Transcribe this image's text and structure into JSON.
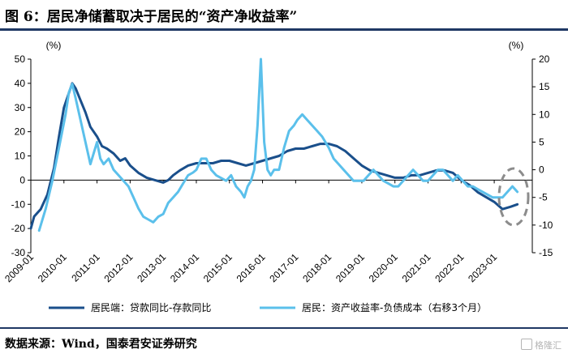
{
  "title": "图 6：居民净储蓄取决于居民的“资产净收益率”",
  "source": "数据来源：Wind，国泰君安证券研究",
  "watermark": "格隆汇",
  "colors": {
    "series1": "#1a4f8b",
    "series2": "#5bc0eb",
    "rule": "#1f3864",
    "highlight": "#8c8c8c"
  },
  "chart_data": {
    "type": "line",
    "left_axis": {
      "unit": "(%)",
      "min": -30,
      "max": 50,
      "ticks": [
        50,
        40,
        30,
        20,
        10,
        0,
        -10,
        -20,
        -30
      ]
    },
    "right_axis": {
      "unit": "(%)",
      "min": -15,
      "max": 20,
      "ticks": [
        20,
        15,
        10,
        5,
        0,
        -5,
        -10,
        -15
      ]
    },
    "x_ticks": [
      "2009-01",
      "2010-01",
      "2011-01",
      "2012-01",
      "2013-01",
      "2014-01",
      "2015-01",
      "2016-01",
      "2017-01",
      "2018-01",
      "2019-01",
      "2020-01",
      "2021-01",
      "2022-01",
      "2023-01"
    ],
    "legend": [
      "居民端：贷款同比-存款同比",
      "居民：资产收益率-负债成本（右移3个月）"
    ],
    "series": [
      {
        "name": "居民端：贷款同比-存款同比",
        "axis": "left",
        "points": [
          [
            2009.0,
            -20
          ],
          [
            2009.1,
            -15
          ],
          [
            2009.3,
            -12
          ],
          [
            2009.5,
            -6
          ],
          [
            2009.7,
            5
          ],
          [
            2009.85,
            18
          ],
          [
            2010.0,
            30
          ],
          [
            2010.15,
            36
          ],
          [
            2010.25,
            40
          ],
          [
            2010.35,
            38
          ],
          [
            2010.5,
            33
          ],
          [
            2010.65,
            28
          ],
          [
            2010.8,
            22
          ],
          [
            2011.0,
            18
          ],
          [
            2011.15,
            14
          ],
          [
            2011.3,
            13
          ],
          [
            2011.5,
            11
          ],
          [
            2011.7,
            8
          ],
          [
            2011.85,
            9
          ],
          [
            2012.0,
            6
          ],
          [
            2012.25,
            3
          ],
          [
            2012.5,
            1
          ],
          [
            2012.75,
            0
          ],
          [
            2013.0,
            -1
          ],
          [
            2013.15,
            0
          ],
          [
            2013.3,
            2
          ],
          [
            2013.5,
            4
          ],
          [
            2013.75,
            6
          ],
          [
            2014.0,
            7
          ],
          [
            2014.25,
            7
          ],
          [
            2014.5,
            7
          ],
          [
            2014.75,
            8
          ],
          [
            2015.0,
            8
          ],
          [
            2015.25,
            7
          ],
          [
            2015.5,
            6
          ],
          [
            2015.75,
            7
          ],
          [
            2016.0,
            8
          ],
          [
            2016.25,
            9
          ],
          [
            2016.5,
            10
          ],
          [
            2016.75,
            12
          ],
          [
            2017.0,
            13
          ],
          [
            2017.25,
            13
          ],
          [
            2017.5,
            14
          ],
          [
            2017.75,
            15
          ],
          [
            2018.0,
            15
          ],
          [
            2018.25,
            14
          ],
          [
            2018.5,
            12
          ],
          [
            2018.75,
            9
          ],
          [
            2019.0,
            6
          ],
          [
            2019.25,
            4
          ],
          [
            2019.5,
            3
          ],
          [
            2019.75,
            2
          ],
          [
            2020.0,
            1
          ],
          [
            2020.25,
            1
          ],
          [
            2020.5,
            2
          ],
          [
            2020.75,
            2
          ],
          [
            2021.0,
            3
          ],
          [
            2021.25,
            4
          ],
          [
            2021.5,
            4
          ],
          [
            2021.75,
            3
          ],
          [
            2022.0,
            0
          ],
          [
            2022.25,
            -2
          ],
          [
            2022.5,
            -5
          ],
          [
            2022.75,
            -7
          ],
          [
            2023.0,
            -9
          ],
          [
            2023.25,
            -12
          ],
          [
            2023.5,
            -11
          ],
          [
            2023.7,
            -10
          ]
        ]
      },
      {
        "name": "居民：资产收益率-负债成本（右移3个月）",
        "axis": "right",
        "points": [
          [
            2009.25,
            -11
          ],
          [
            2009.45,
            -7
          ],
          [
            2009.65,
            -2
          ],
          [
            2009.85,
            4
          ],
          [
            2010.05,
            10
          ],
          [
            2010.15,
            14
          ],
          [
            2010.25,
            15.5
          ],
          [
            2010.35,
            13
          ],
          [
            2010.5,
            9
          ],
          [
            2010.65,
            5
          ],
          [
            2010.8,
            1
          ],
          [
            2010.9,
            3
          ],
          [
            2011.0,
            5
          ],
          [
            2011.1,
            2
          ],
          [
            2011.2,
            1
          ],
          [
            2011.35,
            2
          ],
          [
            2011.5,
            0
          ],
          [
            2011.65,
            -1
          ],
          [
            2011.8,
            -2
          ],
          [
            2011.95,
            -3
          ],
          [
            2012.1,
            -5
          ],
          [
            2012.25,
            -7
          ],
          [
            2012.4,
            -8.5
          ],
          [
            2012.55,
            -9
          ],
          [
            2012.7,
            -9.5
          ],
          [
            2012.85,
            -8.5
          ],
          [
            2013.0,
            -8
          ],
          [
            2013.15,
            -6
          ],
          [
            2013.3,
            -5
          ],
          [
            2013.45,
            -4
          ],
          [
            2013.6,
            -2.5
          ],
          [
            2013.75,
            -1
          ],
          [
            2013.9,
            -0.5
          ],
          [
            2014.0,
            0
          ],
          [
            2014.15,
            2
          ],
          [
            2014.3,
            2
          ],
          [
            2014.45,
            0
          ],
          [
            2014.6,
            -1
          ],
          [
            2014.75,
            -1.5
          ],
          [
            2014.9,
            -2
          ],
          [
            2015.05,
            -1
          ],
          [
            2015.2,
            -3
          ],
          [
            2015.35,
            -4
          ],
          [
            2015.45,
            -5
          ],
          [
            2015.55,
            -3
          ],
          [
            2015.65,
            -2
          ],
          [
            2015.75,
            0
          ],
          [
            2015.85,
            8
          ],
          [
            2015.95,
            20
          ],
          [
            2016.05,
            5
          ],
          [
            2016.15,
            0
          ],
          [
            2016.25,
            -1
          ],
          [
            2016.35,
            0
          ],
          [
            2016.5,
            0
          ],
          [
            2016.65,
            4
          ],
          [
            2016.8,
            7
          ],
          [
            2016.95,
            8
          ],
          [
            2017.05,
            9
          ],
          [
            2017.2,
            10
          ],
          [
            2017.35,
            9
          ],
          [
            2017.5,
            8
          ],
          [
            2017.65,
            7
          ],
          [
            2017.8,
            6
          ],
          [
            2018.0,
            4
          ],
          [
            2018.15,
            2
          ],
          [
            2018.3,
            1
          ],
          [
            2018.45,
            0
          ],
          [
            2018.6,
            -1
          ],
          [
            2018.75,
            -2
          ],
          [
            2018.9,
            -2
          ],
          [
            2019.05,
            -2
          ],
          [
            2019.2,
            -1
          ],
          [
            2019.35,
            0
          ],
          [
            2019.5,
            -1
          ],
          [
            2019.65,
            -2
          ],
          [
            2019.8,
            -2.5
          ],
          [
            2019.95,
            -3
          ],
          [
            2020.1,
            -3
          ],
          [
            2020.25,
            -2
          ],
          [
            2020.4,
            -1
          ],
          [
            2020.55,
            0
          ],
          [
            2020.7,
            -1
          ],
          [
            2020.85,
            -2
          ],
          [
            2021.0,
            -2
          ],
          [
            2021.15,
            -1
          ],
          [
            2021.3,
            0
          ],
          [
            2021.45,
            0
          ],
          [
            2021.6,
            -1
          ],
          [
            2021.75,
            -2
          ],
          [
            2021.9,
            -1
          ],
          [
            2022.05,
            -2
          ],
          [
            2022.2,
            -3
          ],
          [
            2022.35,
            -3
          ],
          [
            2022.5,
            -3.5
          ],
          [
            2022.65,
            -4
          ],
          [
            2022.8,
            -4.5
          ],
          [
            2022.95,
            -5
          ],
          [
            2023.1,
            -5
          ],
          [
            2023.25,
            -5
          ],
          [
            2023.4,
            -4
          ],
          [
            2023.55,
            -3
          ],
          [
            2023.7,
            -4
          ]
        ]
      }
    ]
  }
}
